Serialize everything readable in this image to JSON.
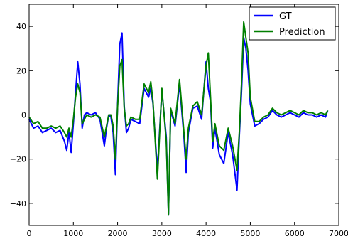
{
  "chart_data": {
    "type": "line",
    "title": "",
    "xlabel": "",
    "ylabel": "",
    "xlim": [
      0,
      7000
    ],
    "ylim": [
      -50,
      50
    ],
    "xticks": [
      0,
      1000,
      2000,
      3000,
      4000,
      5000,
      6000,
      7000
    ],
    "yticks": [
      -40,
      -20,
      0,
      20,
      40
    ],
    "xtick_labels": [
      "0",
      "1000",
      "2000",
      "3000",
      "4000",
      "5000",
      "6000",
      "7000"
    ],
    "ytick_labels": [
      "−40",
      "−20",
      "0",
      "20",
      "40"
    ],
    "grid": false,
    "legend": {
      "position": "top-right"
    },
    "series": [
      {
        "name": "GT",
        "color": "#0000ff",
        "x": [
          0,
          100,
          200,
          300,
          400,
          500,
          600,
          700,
          800,
          850,
          900,
          950,
          1000,
          1050,
          1100,
          1150,
          1200,
          1250,
          1300,
          1400,
          1500,
          1600,
          1700,
          1750,
          1800,
          1850,
          1900,
          1950,
          2000,
          2050,
          2100,
          2150,
          2200,
          2250,
          2300,
          2400,
          2500,
          2600,
          2700,
          2750,
          2800,
          2900,
          3000,
          3100,
          3150,
          3200,
          3300,
          3400,
          3500,
          3550,
          3600,
          3700,
          3800,
          3900,
          4000,
          4050,
          4100,
          4150,
          4200,
          4300,
          4400,
          4500,
          4600,
          4700,
          4750,
          4800,
          4850,
          4900,
          4950,
          5000,
          5100,
          5200,
          5300,
          5400,
          5500,
          5600,
          5700,
          5800,
          5900,
          6000,
          6100,
          6200,
          6300,
          6400,
          6500,
          6600,
          6700,
          6750
        ],
        "y": [
          -2,
          -6,
          -5,
          -8,
          -7,
          -6,
          -8,
          -7,
          -12,
          -16,
          -8,
          -17,
          -4,
          10,
          24,
          14,
          -6,
          0,
          1,
          0,
          1,
          -2,
          -14,
          -6,
          0,
          -1,
          -8,
          -27,
          5,
          32,
          37,
          4,
          -8,
          -6,
          -2,
          -3,
          -4,
          12,
          8,
          12,
          5,
          -25,
          11,
          -10,
          -45,
          2,
          -5,
          14,
          -10,
          -26,
          -8,
          3,
          4,
          -2,
          24,
          12,
          6,
          -15,
          -6,
          -18,
          -22,
          -8,
          -18,
          -34,
          -10,
          10,
          35,
          30,
          20,
          5,
          -5,
          -4,
          -2,
          -1,
          2,
          0,
          -1,
          0,
          1,
          0,
          -1,
          1,
          0,
          0,
          -1,
          0,
          -1,
          2
        ]
      },
      {
        "name": "Prediction",
        "color": "#007f00",
        "x": [
          0,
          100,
          200,
          300,
          400,
          500,
          600,
          700,
          800,
          850,
          900,
          950,
          1000,
          1050,
          1100,
          1150,
          1200,
          1250,
          1300,
          1400,
          1500,
          1600,
          1700,
          1750,
          1800,
          1850,
          1900,
          1950,
          2000,
          2050,
          2100,
          2150,
          2200,
          2250,
          2300,
          2400,
          2500,
          2600,
          2700,
          2750,
          2800,
          2900,
          3000,
          3100,
          3150,
          3200,
          3300,
          3400,
          3500,
          3550,
          3600,
          3700,
          3800,
          3900,
          4000,
          4050,
          4100,
          4150,
          4200,
          4300,
          4400,
          4500,
          4600,
          4700,
          4750,
          4800,
          4850,
          4900,
          4950,
          5000,
          5100,
          5200,
          5300,
          5400,
          5500,
          5600,
          5700,
          5800,
          5900,
          6000,
          6100,
          6200,
          6300,
          6400,
          6500,
          6600,
          6700,
          6750
        ],
        "y": [
          -1,
          -4,
          -3,
          -6,
          -6,
          -5,
          -6,
          -5,
          -8,
          -10,
          -6,
          -10,
          -2,
          8,
          14,
          10,
          -4,
          -2,
          0,
          -1,
          0,
          -1,
          -10,
          -5,
          0,
          0,
          -5,
          -20,
          4,
          22,
          25,
          3,
          -5,
          -4,
          -1,
          -2,
          -2,
          14,
          10,
          15,
          6,
          -29,
          12,
          -12,
          -45,
          3,
          -4,
          16,
          -8,
          -20,
          -6,
          4,
          6,
          0,
          22,
          28,
          8,
          -12,
          -4,
          -14,
          -16,
          -6,
          -14,
          -25,
          -8,
          14,
          42,
          35,
          28,
          8,
          -3,
          -3,
          -1,
          0,
          3,
          1,
          0,
          1,
          2,
          1,
          0,
          2,
          1,
          1,
          0,
          1,
          0,
          2
        ]
      }
    ]
  }
}
